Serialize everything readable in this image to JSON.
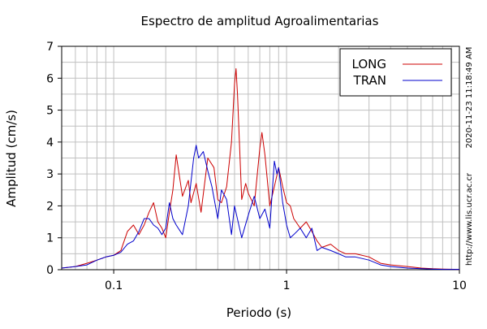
{
  "chart_data": {
    "type": "line",
    "title": "Espectro de amplitud Agroalimentarias",
    "xlabel": "Periodo (s)",
    "ylabel": "Amplitud (cm/s)",
    "x_scale": "log",
    "xlim": [
      0.05,
      10
    ],
    "ylim": [
      0,
      7
    ],
    "x_ticks": [
      {
        "value": 0.1,
        "label": "0.1"
      },
      {
        "value": 1,
        "label": "1"
      },
      {
        "value": 10,
        "label": "10"
      }
    ],
    "y_ticks": [
      {
        "value": 0,
        "label": "0"
      },
      {
        "value": 1,
        "label": "1"
      },
      {
        "value": 2,
        "label": "2"
      },
      {
        "value": 3,
        "label": "3"
      },
      {
        "value": 4,
        "label": "4"
      },
      {
        "value": 5,
        "label": "5"
      },
      {
        "value": 6,
        "label": "6"
      },
      {
        "value": 7,
        "label": "7"
      }
    ],
    "grid": true,
    "legend_position": "top-right",
    "series": [
      {
        "name": "LONG",
        "color": "#cc0000",
        "x": [
          0.05,
          0.06,
          0.07,
          0.08,
          0.09,
          0.1,
          0.11,
          0.12,
          0.13,
          0.14,
          0.15,
          0.16,
          0.17,
          0.18,
          0.19,
          0.2,
          0.21,
          0.22,
          0.23,
          0.25,
          0.27,
          0.28,
          0.3,
          0.32,
          0.35,
          0.38,
          0.4,
          0.42,
          0.45,
          0.48,
          0.5,
          0.51,
          0.52,
          0.55,
          0.58,
          0.6,
          0.65,
          0.7,
          0.72,
          0.75,
          0.8,
          0.85,
          0.9,
          0.95,
          1.0,
          1.05,
          1.1,
          1.2,
          1.3,
          1.4,
          1.5,
          1.6,
          1.8,
          2.0,
          2.2,
          2.5,
          3.0,
          3.5,
          4.0,
          5.0,
          6.0,
          7.0,
          8.0,
          10.0
        ],
        "y": [
          0.05,
          0.1,
          0.2,
          0.3,
          0.4,
          0.45,
          0.6,
          1.2,
          1.4,
          1.1,
          1.4,
          1.8,
          2.1,
          1.5,
          1.3,
          1.0,
          1.8,
          2.5,
          3.6,
          2.3,
          2.8,
          2.1,
          2.7,
          1.8,
          3.5,
          3.2,
          2.2,
          2.1,
          2.6,
          4.0,
          5.8,
          6.3,
          5.5,
          2.2,
          2.7,
          2.4,
          2.0,
          3.8,
          4.3,
          3.6,
          2.0,
          2.6,
          3.2,
          2.6,
          2.1,
          2.0,
          1.6,
          1.3,
          1.5,
          1.2,
          0.9,
          0.7,
          0.8,
          0.6,
          0.5,
          0.5,
          0.4,
          0.2,
          0.15,
          0.1,
          0.05,
          0.03,
          0.02,
          0.01
        ]
      },
      {
        "name": "TRAN",
        "color": "#0000cc",
        "x": [
          0.05,
          0.06,
          0.07,
          0.08,
          0.09,
          0.1,
          0.11,
          0.12,
          0.13,
          0.14,
          0.15,
          0.16,
          0.17,
          0.18,
          0.19,
          0.2,
          0.21,
          0.22,
          0.23,
          0.25,
          0.27,
          0.29,
          0.3,
          0.31,
          0.33,
          0.35,
          0.37,
          0.4,
          0.42,
          0.45,
          0.48,
          0.5,
          0.55,
          0.6,
          0.65,
          0.7,
          0.75,
          0.8,
          0.85,
          0.88,
          0.9,
          0.95,
          1.0,
          1.05,
          1.1,
          1.2,
          1.3,
          1.4,
          1.5,
          1.6,
          1.8,
          2.0,
          2.2,
          2.5,
          3.0,
          3.5,
          4.0,
          5.0,
          6.0,
          7.0,
          8.0,
          10.0
        ],
        "y": [
          0.05,
          0.1,
          0.15,
          0.3,
          0.4,
          0.45,
          0.55,
          0.8,
          0.9,
          1.2,
          1.6,
          1.6,
          1.4,
          1.3,
          1.1,
          1.3,
          2.1,
          1.6,
          1.4,
          1.1,
          2.0,
          3.5,
          3.9,
          3.5,
          3.7,
          3.1,
          2.6,
          1.6,
          2.5,
          2.2,
          1.1,
          2.0,
          1.0,
          1.7,
          2.3,
          1.6,
          1.9,
          1.3,
          3.4,
          3.0,
          3.2,
          2.1,
          1.4,
          1.0,
          1.1,
          1.3,
          1.0,
          1.3,
          0.6,
          0.7,
          0.6,
          0.5,
          0.4,
          0.4,
          0.3,
          0.15,
          0.1,
          0.05,
          0.03,
          0.02,
          0.01,
          0.01
        ]
      }
    ]
  },
  "side_labels": {
    "timestamp": "2020-11-23 11:18:49 AM",
    "url": "http://www.lis.ucr.ac.cr"
  }
}
